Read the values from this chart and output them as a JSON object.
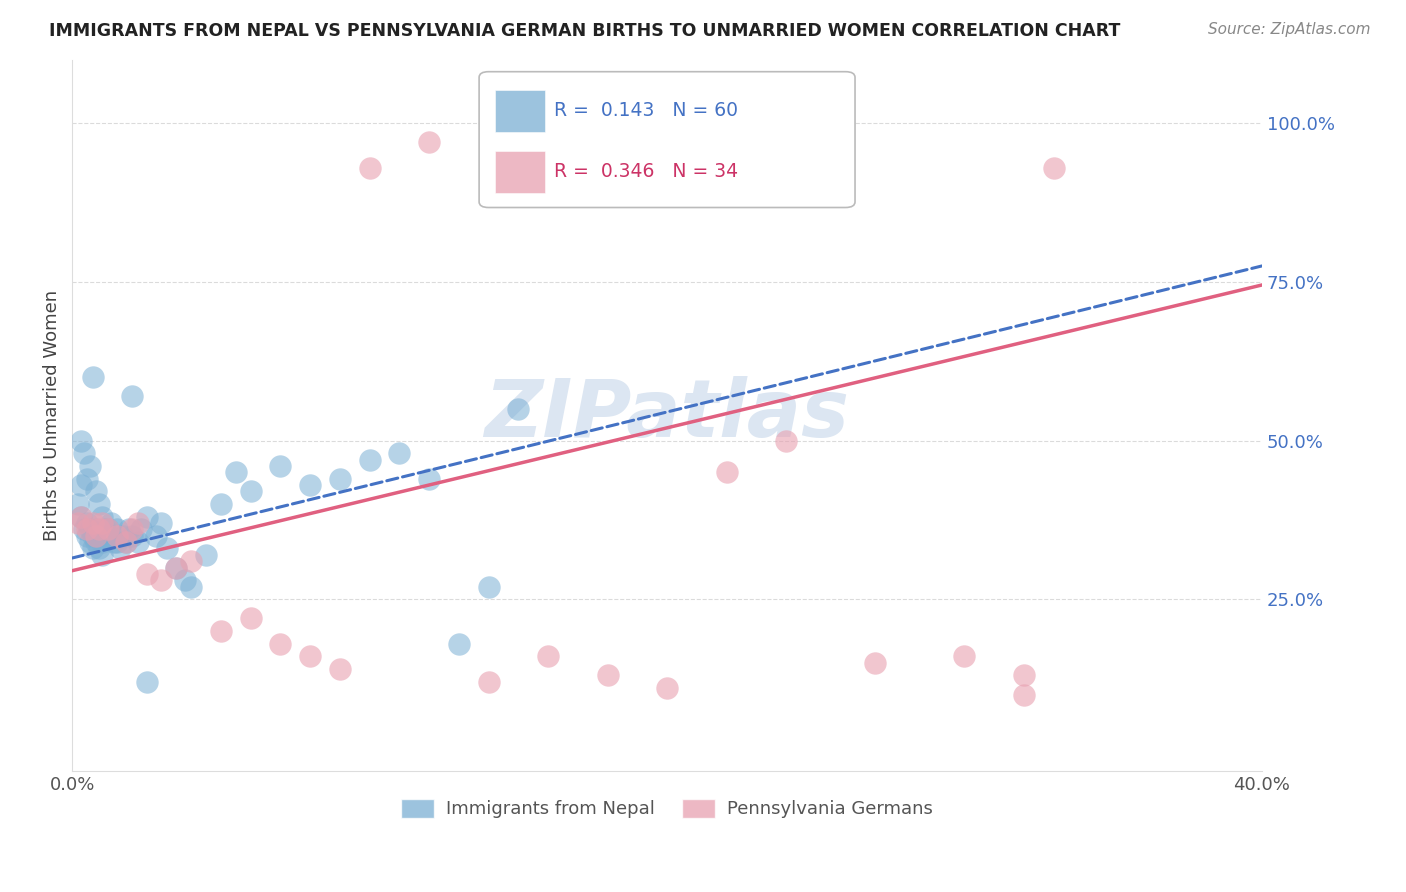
{
  "title": "IMMIGRANTS FROM NEPAL VS PENNSYLVANIA GERMAN BIRTHS TO UNMARRIED WOMEN CORRELATION CHART",
  "source": "Source: ZipAtlas.com",
  "ylabel": "Births to Unmarried Women",
  "xlim": [
    0.0,
    0.4
  ],
  "ylim": [
    -0.02,
    1.1
  ],
  "yticks": [
    0.25,
    0.5,
    0.75,
    1.0
  ],
  "ytick_labels": [
    "25.0%",
    "50.0%",
    "75.0%",
    "100.0%"
  ],
  "ytick_color": "#4472c4",
  "series1_color": "#7bafd4",
  "series2_color": "#e8a0b0",
  "series1_label": "Immigrants from Nepal",
  "series2_label": "Pennsylvania Germans",
  "series1_R": 0.143,
  "series1_N": 60,
  "series2_R": 0.346,
  "series2_N": 34,
  "legend_R1_color": "#4472c4",
  "legend_R2_color": "#cc3366",
  "line1_color": "#4472c4",
  "line2_color": "#e06080",
  "background_color": "#ffffff",
  "grid_color": "#cccccc",
  "blue_x": [
    0.002,
    0.003,
    0.003,
    0.004,
    0.005,
    0.005,
    0.006,
    0.006,
    0.007,
    0.007,
    0.008,
    0.008,
    0.009,
    0.009,
    0.01,
    0.01,
    0.011,
    0.012,
    0.013,
    0.014,
    0.015,
    0.016,
    0.017,
    0.018,
    0.019,
    0.02,
    0.022,
    0.023,
    0.025,
    0.028,
    0.03,
    0.032,
    0.035,
    0.038,
    0.04,
    0.045,
    0.05,
    0.055,
    0.06,
    0.07,
    0.08,
    0.09,
    0.1,
    0.11,
    0.12,
    0.13,
    0.14,
    0.15,
    0.003,
    0.004,
    0.005,
    0.006,
    0.007,
    0.008,
    0.009,
    0.01,
    0.012,
    0.015,
    0.02,
    0.025
  ],
  "blue_y": [
    0.4,
    0.38,
    0.43,
    0.36,
    0.35,
    0.37,
    0.34,
    0.36,
    0.33,
    0.35,
    0.34,
    0.36,
    0.33,
    0.35,
    0.32,
    0.34,
    0.36,
    0.35,
    0.37,
    0.34,
    0.36,
    0.33,
    0.35,
    0.34,
    0.36,
    0.35,
    0.34,
    0.36,
    0.38,
    0.35,
    0.37,
    0.33,
    0.3,
    0.28,
    0.27,
    0.32,
    0.4,
    0.45,
    0.42,
    0.46,
    0.43,
    0.44,
    0.47,
    0.48,
    0.44,
    0.18,
    0.27,
    0.55,
    0.5,
    0.48,
    0.44,
    0.46,
    0.6,
    0.42,
    0.4,
    0.38,
    0.36,
    0.34,
    0.57,
    0.12
  ],
  "pink_x": [
    0.002,
    0.003,
    0.005,
    0.007,
    0.008,
    0.009,
    0.01,
    0.012,
    0.015,
    0.018,
    0.02,
    0.022,
    0.025,
    0.03,
    0.035,
    0.04,
    0.05,
    0.06,
    0.07,
    0.08,
    0.09,
    0.1,
    0.12,
    0.14,
    0.16,
    0.18,
    0.2,
    0.22,
    0.24,
    0.27,
    0.3,
    0.32,
    0.33,
    0.32
  ],
  "pink_y": [
    0.37,
    0.38,
    0.36,
    0.37,
    0.35,
    0.36,
    0.37,
    0.36,
    0.35,
    0.34,
    0.36,
    0.37,
    0.29,
    0.28,
    0.3,
    0.31,
    0.2,
    0.22,
    0.18,
    0.16,
    0.14,
    0.93,
    0.97,
    0.12,
    0.16,
    0.13,
    0.11,
    0.45,
    0.5,
    0.15,
    0.16,
    0.13,
    0.93,
    0.1
  ],
  "line1_x0": 0.0,
  "line1_y0": 0.315,
  "line1_x1": 0.4,
  "line1_y1": 0.775,
  "line2_x0": 0.0,
  "line2_y0": 0.295,
  "line2_x1": 0.4,
  "line2_y1": 0.745
}
